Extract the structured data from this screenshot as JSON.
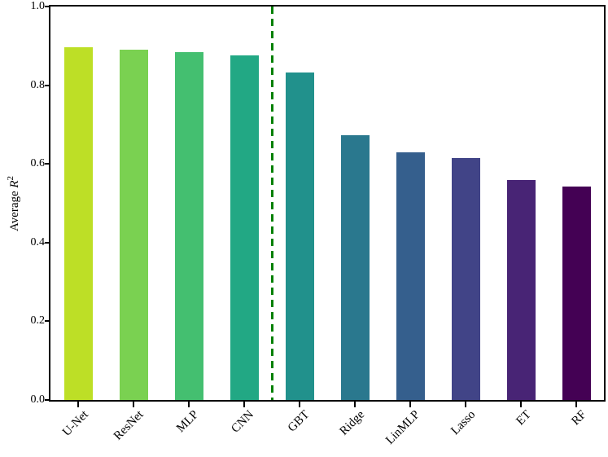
{
  "chart_data": {
    "type": "bar",
    "title": "",
    "xlabel": "",
    "ylabel": "Average R²",
    "ylabel_parts": {
      "prefix": "Average ",
      "var": "R",
      "exp": "2"
    },
    "categories": [
      "U-Net",
      "ResNet",
      "MLP",
      "CNN",
      "GBT",
      "Ridge",
      "LinMLP",
      "Lasso",
      "ET",
      "RF"
    ],
    "values": [
      0.897,
      0.891,
      0.885,
      0.875,
      0.832,
      0.673,
      0.629,
      0.615,
      0.559,
      0.543
    ],
    "colors": [
      "#bddf26",
      "#7ad151",
      "#44bf70",
      "#22a884",
      "#21918c",
      "#2a788e",
      "#355f8d",
      "#414487",
      "#482475",
      "#440154"
    ],
    "colormap": "viridis",
    "yticks": [
      "0.0",
      "0.2",
      "0.4",
      "0.6",
      "0.8",
      "1.0"
    ],
    "ylim": [
      0.0,
      1.0
    ],
    "grid": false,
    "legend": null,
    "bar_order": "descending",
    "separator_line": {
      "between": [
        "CNN",
        "GBT"
      ],
      "index": 4,
      "color": "#008000",
      "style": "dashed",
      "orientation": "vertical"
    },
    "spine_color": "#000000",
    "background_color": "#ffffff",
    "x_tick_label_rotation_deg": 45
  }
}
